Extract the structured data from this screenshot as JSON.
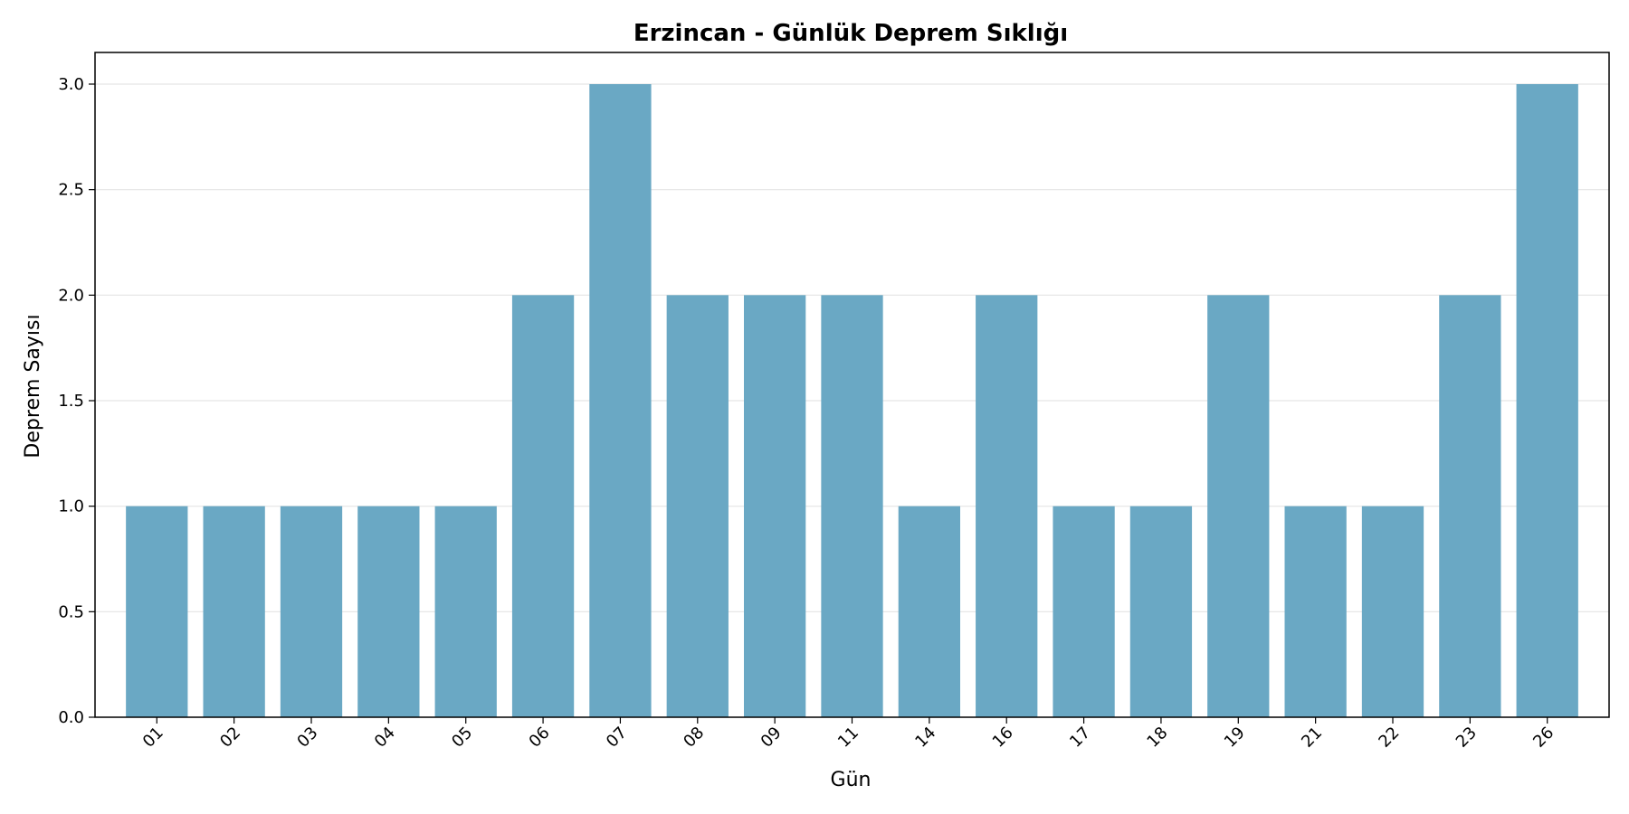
{
  "chart_data": {
    "type": "bar",
    "title": "Erzincan - Günlük Deprem Sıklığı",
    "xlabel": "Gün",
    "ylabel": "Deprem Sayısı",
    "categories": [
      "01",
      "02",
      "03",
      "04",
      "05",
      "06",
      "07",
      "08",
      "09",
      "11",
      "14",
      "16",
      "17",
      "18",
      "19",
      "21",
      "22",
      "23",
      "26"
    ],
    "values": [
      1,
      1,
      1,
      1,
      1,
      2,
      3,
      2,
      2,
      2,
      1,
      2,
      1,
      1,
      2,
      1,
      1,
      2,
      3
    ],
    "ylim": [
      0,
      3.15
    ],
    "yticks": [
      "0.0",
      "0.5",
      "1.0",
      "1.5",
      "2.0",
      "2.5",
      "3.0"
    ],
    "grid": "y",
    "bar_color": "#6aa8c4",
    "legend": "none"
  }
}
